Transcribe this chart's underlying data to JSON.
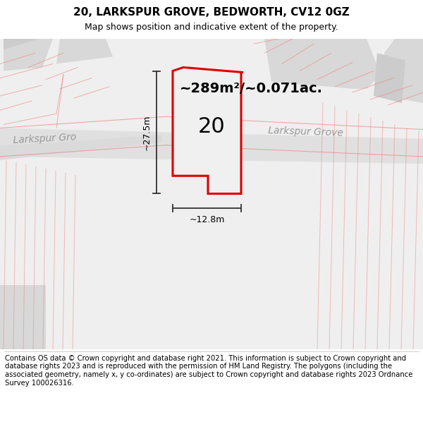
{
  "title": "20, LARKSPUR GROVE, BEDWORTH, CV12 0GZ",
  "subtitle": "Map shows position and indicative extent of the property.",
  "footer": "Contains OS data © Crown copyright and database right 2021. This information is subject to Crown copyright and database rights 2023 and is reproduced with the permission of HM Land Registry. The polygons (including the associated geometry, namely x, y co-ordinates) are subject to Crown copyright and database rights 2023 Ordnance Survey 100026316.",
  "area_label": "~289m²/~0.071ac.",
  "dim_vertical": "~27.5m",
  "dim_horizontal": "~12.8m",
  "property_label": "20",
  "street_label_1": "Larkspur Grove",
  "street_label_2": "Larkspur Gro",
  "bg_color": "#efefef",
  "road_color": "#e4e4e4",
  "building_color": "#d8d8d8",
  "building_color2": "#cccccc",
  "red_line_color": "#f08080",
  "property_outline_color": "#dd0000",
  "property_fill": "#f0f0f0",
  "dim_line_color": "#333333",
  "title_fontsize": 11,
  "subtitle_fontsize": 9,
  "footer_fontsize": 7.2,
  "area_fontsize": 14,
  "street_fontsize": 10,
  "prop_label_fontsize": 22,
  "dim_fontsize": 9
}
